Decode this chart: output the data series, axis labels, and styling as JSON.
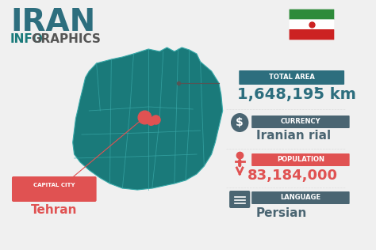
{
  "title_iran": "IRAN",
  "title_info": "INFO",
  "title_graphics": "GRAPHICS",
  "bg_color": "#f0f0f0",
  "teal_color": "#1a7a7a",
  "red_color": "#e05252",
  "dark_teal": "#2d6e7e",
  "slate_color": "#4a6572",
  "total_area_label": "TOTAL AREA",
  "total_area_value": "1,648,195 km",
  "currency_label": "CURRENCY",
  "currency_value": "Iranian rial",
  "population_label": "POPULATION",
  "population_value": "83,184,000",
  "language_label": "LANGUAGE",
  "language_value": "Persian",
  "capital_label": "CAPITAL CITY",
  "capital_value": "Tehran"
}
